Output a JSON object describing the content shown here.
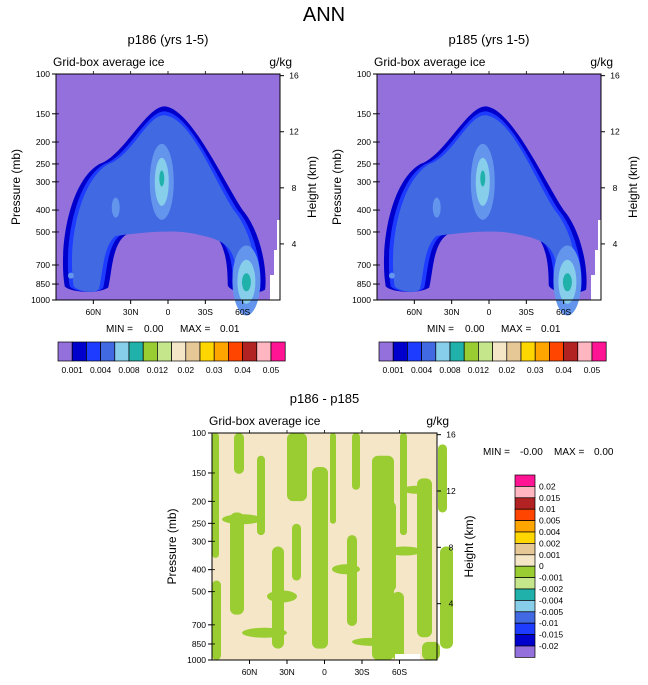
{
  "page_title": "ANN",
  "colors": {
    "palette_levels": [
      "#9370DB",
      "#0000CD",
      "#1E3CFF",
      "#4169E1",
      "#87CEEB",
      "#20B2AA",
      "#9ACD32",
      "#C6E68C",
      "#F5E6C8",
      "#E6C896",
      "#FFD700",
      "#FFA500",
      "#FF4500",
      "#B22222",
      "#FFB6C1",
      "#FF1493"
    ],
    "background_field": "#9370DB",
    "diff_base": "#F5E6C8",
    "diff_neg": "#9ACD32"
  },
  "chart_data": [
    {
      "type": "heatmap",
      "id": "p186",
      "title": "p186 (yrs 1-5)",
      "left_title": "Grid-box average ice",
      "units": "g/kg",
      "ylabel": "Pressure (mb)",
      "ylabel_right": "Height (km)",
      "y_ticks": [
        "100",
        "150",
        "200",
        "250",
        "300",
        "400",
        "500",
        "700",
        "850",
        "1000"
      ],
      "y_tick_values": [
        100,
        150,
        200,
        250,
        300,
        400,
        500,
        700,
        850,
        1000
      ],
      "y_right_ticks": [
        "16",
        "12",
        "8",
        "4"
      ],
      "y_right_values": [
        16,
        12,
        8,
        4
      ],
      "x_ticks": [
        "60N",
        "30N",
        "0",
        "30S",
        "60S"
      ],
      "x_tick_values": [
        60,
        30,
        0,
        -30,
        -60
      ],
      "xlim": [
        90,
        -90
      ],
      "ylim": [
        100,
        1000
      ],
      "min_label": "MIN =",
      "min_value": "0.00",
      "max_label": "MAX =",
      "max_value": "0.01",
      "colorbar_labels": [
        "0.001",
        "0.004",
        "0.008",
        "0.012",
        "0.02",
        "0.03",
        "0.04",
        "0.05"
      ],
      "peak_max": 0.01
    },
    {
      "type": "heatmap",
      "id": "p185",
      "title": "p185 (yrs 1-5)",
      "left_title": "Grid-box average ice",
      "units": "g/kg",
      "ylabel": "Pressure (mb)",
      "ylabel_right": "Height (km)",
      "y_ticks": [
        "100",
        "150",
        "200",
        "250",
        "300",
        "400",
        "500",
        "700",
        "850",
        "1000"
      ],
      "y_tick_values": [
        100,
        150,
        200,
        250,
        300,
        400,
        500,
        700,
        850,
        1000
      ],
      "y_right_ticks": [
        "16",
        "12",
        "8",
        "4"
      ],
      "y_right_values": [
        16,
        12,
        8,
        4
      ],
      "x_ticks": [
        "60N",
        "30N",
        "0",
        "30S",
        "60S"
      ],
      "x_tick_values": [
        60,
        30,
        0,
        -30,
        -60
      ],
      "xlim": [
        90,
        -90
      ],
      "ylim": [
        100,
        1000
      ],
      "min_label": "MIN =",
      "min_value": "0.00",
      "max_label": "MAX =",
      "max_value": "0.01",
      "colorbar_labels": [
        "0.001",
        "0.004",
        "0.008",
        "0.012",
        "0.02",
        "0.03",
        "0.04",
        "0.05"
      ],
      "peak_max": 0.01
    },
    {
      "type": "heatmap",
      "id": "diff",
      "title": "p186 - p185",
      "left_title": "Grid-box average ice",
      "units": "g/kg",
      "ylabel": "Pressure (mb)",
      "ylabel_right": "Height (km)",
      "y_ticks": [
        "100",
        "150",
        "200",
        "250",
        "300",
        "400",
        "500",
        "700",
        "850",
        "1000"
      ],
      "y_tick_values": [
        100,
        150,
        200,
        250,
        300,
        400,
        500,
        700,
        850,
        1000
      ],
      "y_right_ticks": [
        "16",
        "12",
        "8",
        "4"
      ],
      "y_right_values": [
        16,
        12,
        8,
        4
      ],
      "x_ticks": [
        "60N",
        "30N",
        "0",
        "30S",
        "60S"
      ],
      "x_tick_values": [
        60,
        30,
        0,
        -30,
        -60
      ],
      "xlim": [
        90,
        -90
      ],
      "ylim": [
        100,
        1000
      ],
      "min_label": "MIN =",
      "min_value": "-0.00",
      "max_label": "MAX =",
      "max_value": "0.00",
      "colorbar_labels": [
        "0.02",
        "0.015",
        "0.01",
        "0.005",
        "0.004",
        "0.002",
        "0.001",
        "0",
        "-0.001",
        "-0.002",
        "-0.004",
        "-0.005",
        "-0.01",
        "-0.015",
        "-0.02"
      ],
      "colorbar_colors": [
        "#FF1493",
        "#FFB6C1",
        "#B22222",
        "#FF4500",
        "#FFA500",
        "#FFD700",
        "#E6C896",
        "#F5E6C8",
        "#9ACD32",
        "#C6E68C",
        "#20B2AA",
        "#87CEEB",
        "#4169E1",
        "#1E3CFF",
        "#0000CD",
        "#9370DB"
      ]
    }
  ]
}
